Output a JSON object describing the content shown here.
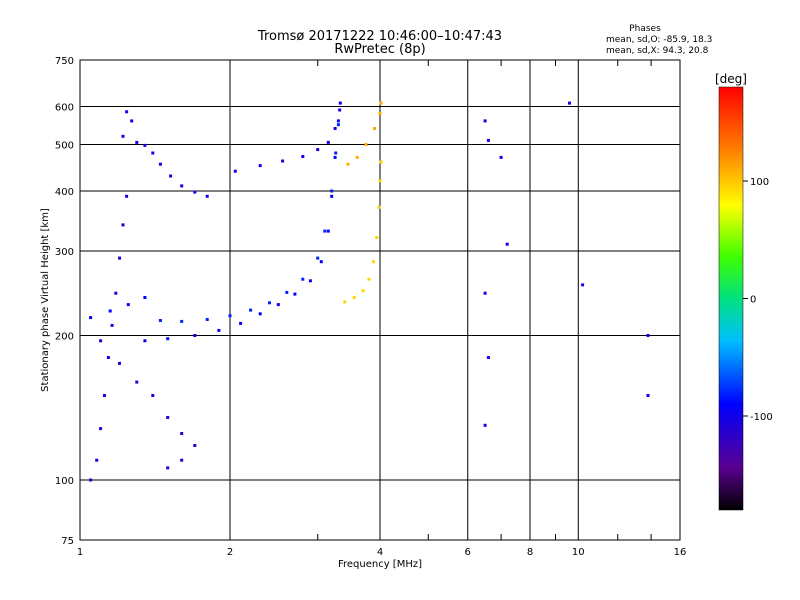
{
  "header": {
    "title_line1": "Tromsø 20171222 10:46:00–10:47:43",
    "title_line2": "RwPretec (8p)",
    "phases_title": "Phases",
    "phases_o": "mean, sd,O: -85.9, 18.3",
    "phases_x": "mean, sd,X: 94.3, 20.8"
  },
  "chart_data": {
    "type": "scatter",
    "xlabel": "Frequency [MHz]",
    "ylabel": "Stationary phase Virtual Height [km]",
    "xscale": "log",
    "yscale": "log",
    "xlim": [
      1,
      16
    ],
    "ylim": [
      75,
      750
    ],
    "xticks": [
      1,
      2,
      4,
      6,
      8,
      10,
      16
    ],
    "yticks": [
      75,
      100,
      200,
      300,
      400,
      500,
      600,
      750
    ],
    "grid": true,
    "colorbar": {
      "label": "[deg]",
      "range": [
        -180,
        180
      ],
      "ticks": [
        100,
        0,
        -100
      ],
      "colormap": "rainbow"
    },
    "traces": [
      {
        "name": "",
        "phase": -100,
        "points": [
          [
            1.24,
            585
          ],
          [
            1.27,
            560
          ],
          [
            1.22,
            520
          ],
          [
            1.3,
            505
          ],
          [
            1.35,
            498
          ],
          [
            1.4,
            480
          ],
          [
            1.45,
            455
          ],
          [
            1.52,
            430
          ],
          [
            1.6,
            410
          ],
          [
            1.7,
            398
          ],
          [
            1.8,
            390
          ]
        ]
      },
      {
        "name": "",
        "phase": -105,
        "points": [
          [
            1.05,
            100
          ],
          [
            1.08,
            110
          ],
          [
            1.1,
            128
          ],
          [
            1.12,
            150
          ],
          [
            1.14,
            180
          ],
          [
            1.16,
            210
          ],
          [
            1.18,
            245
          ],
          [
            1.2,
            290
          ],
          [
            1.22,
            340
          ],
          [
            1.24,
            390
          ]
        ]
      },
      {
        "name": "",
        "phase": -95,
        "points": [
          [
            1.35,
            195
          ],
          [
            1.5,
            197
          ],
          [
            1.7,
            200
          ],
          [
            1.9,
            205
          ],
          [
            2.1,
            212
          ],
          [
            2.3,
            222
          ],
          [
            2.5,
            232
          ],
          [
            2.7,
            244
          ],
          [
            2.9,
            260
          ],
          [
            3.05,
            285
          ],
          [
            3.15,
            330
          ],
          [
            3.2,
            390
          ],
          [
            3.25,
            470
          ],
          [
            3.3,
            560
          ],
          [
            3.33,
            610
          ]
        ]
      },
      {
        "name": "",
        "phase": -80,
        "points": [
          [
            1.45,
            215
          ],
          [
            1.6,
            214
          ],
          [
            1.8,
            216
          ],
          [
            2.0,
            220
          ],
          [
            2.2,
            226
          ],
          [
            2.4,
            234
          ],
          [
            2.6,
            246
          ],
          [
            2.8,
            262
          ],
          [
            3.0,
            290
          ],
          [
            3.1,
            330
          ],
          [
            3.2,
            400
          ],
          [
            3.26,
            480
          ],
          [
            3.3,
            550
          ]
        ]
      },
      {
        "name": "",
        "phase": -100,
        "points": [
          [
            2.05,
            440
          ],
          [
            2.3,
            452
          ],
          [
            2.55,
            462
          ],
          [
            2.8,
            472
          ],
          [
            3.0,
            488
          ],
          [
            3.15,
            505
          ],
          [
            3.25,
            540
          ],
          [
            3.32,
            590
          ]
        ]
      },
      {
        "name": "",
        "phase": 95,
        "points": [
          [
            3.4,
            235
          ],
          [
            3.55,
            240
          ],
          [
            3.7,
            248
          ],
          [
            3.8,
            262
          ],
          [
            3.88,
            285
          ],
          [
            3.94,
            320
          ],
          [
            3.98,
            370
          ],
          [
            4.0,
            420
          ],
          [
            4.02,
            460
          ]
        ]
      },
      {
        "name": "",
        "phase": 110,
        "points": [
          [
            3.45,
            455
          ],
          [
            3.6,
            470
          ],
          [
            3.75,
            500
          ],
          [
            3.9,
            540
          ],
          [
            4.0,
            580
          ],
          [
            4.02,
            610
          ]
        ]
      },
      {
        "name": "",
        "phase": -110,
        "points": [
          [
            1.1,
            195
          ],
          [
            1.2,
            175
          ],
          [
            1.3,
            160
          ],
          [
            1.4,
            150
          ],
          [
            1.5,
            135
          ],
          [
            1.6,
            125
          ],
          [
            1.7,
            118
          ],
          [
            1.6,
            110
          ],
          [
            1.5,
            106
          ]
        ]
      },
      {
        "name": "",
        "phase": -90,
        "points": [
          [
            1.05,
            218
          ],
          [
            1.15,
            225
          ],
          [
            1.25,
            232
          ],
          [
            1.35,
            240
          ]
        ]
      },
      {
        "name": "",
        "phase": -100,
        "points": [
          [
            6.5,
            560
          ],
          [
            6.5,
            245
          ],
          [
            6.5,
            130
          ],
          [
            6.6,
            510
          ],
          [
            6.6,
            180
          ],
          [
            7.0,
            470
          ],
          [
            7.2,
            310
          ],
          [
            9.6,
            610
          ],
          [
            10.2,
            255
          ],
          [
            13.8,
            200
          ],
          [
            13.8,
            150
          ]
        ]
      }
    ]
  }
}
